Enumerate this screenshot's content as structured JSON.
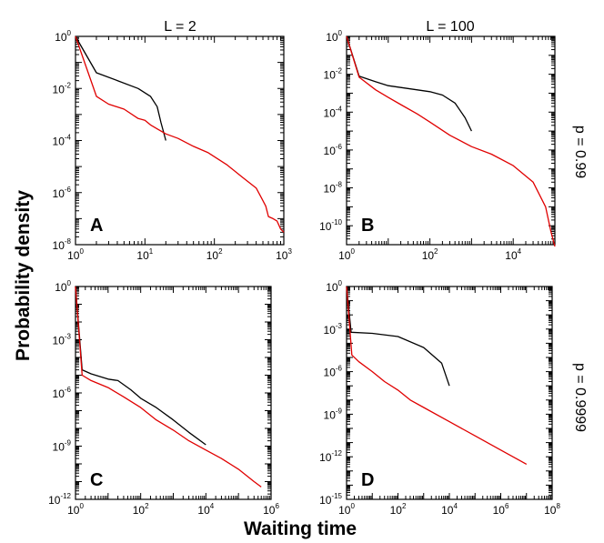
{
  "figure": {
    "xlabel": "Waiting time",
    "ylabel": "Probability density",
    "col_headers": [
      "L = 2",
      "L = 100"
    ],
    "row_headers": [
      "p = 0.99",
      "p = 0.9999"
    ],
    "colors": {
      "black_series": "#000000",
      "red_series": "#e00000"
    }
  },
  "chart_data": [
    {
      "type": "line",
      "panel": "A",
      "log_x": true,
      "log_y": true,
      "xlim": [
        1,
        1000
      ],
      "ylim": [
        1e-08,
        1
      ],
      "xticks": [
        1,
        10,
        100,
        1000
      ],
      "yticks": [
        1,
        0.01,
        0.0001,
        1e-06,
        1e-08
      ],
      "series": [
        {
          "color": "#000000",
          "points": [
            [
              1,
              1
            ],
            [
              2,
              0.04
            ],
            [
              4,
              0.02
            ],
            [
              8,
              0.01
            ],
            [
              12,
              0.005
            ],
            [
              15,
              0.002
            ],
            [
              17,
              0.0005
            ],
            [
              20,
              0.0001
            ]
          ]
        },
        {
          "color": "#e00000",
          "points": [
            [
              1,
              1
            ],
            [
              2,
              0.005
            ],
            [
              3,
              0.0025
            ],
            [
              5,
              0.0016
            ],
            [
              8,
              0.0007
            ],
            [
              10,
              0.0006
            ],
            [
              12,
              0.0004
            ],
            [
              15,
              0.00028
            ],
            [
              20,
              0.00018
            ],
            [
              30,
              0.00012
            ],
            [
              50,
              6e-05
            ],
            [
              80,
              3.5e-05
            ],
            [
              150,
              1.2e-05
            ],
            [
              250,
              4e-06
            ],
            [
              400,
              1.5e-06
            ],
            [
              480,
              6e-07
            ],
            [
              550,
              3e-07
            ],
            [
              600,
              1.2e-07
            ],
            [
              700,
              1e-07
            ],
            [
              800,
              8e-08
            ],
            [
              900,
              4e-08
            ],
            [
              1000,
              3e-08
            ]
          ]
        }
      ]
    },
    {
      "type": "line",
      "panel": "B",
      "log_x": true,
      "log_y": true,
      "xlim": [
        1,
        100000
      ],
      "ylim": [
        1e-11,
        1
      ],
      "xticks": [
        1,
        100,
        10000
      ],
      "yticks": [
        1,
        0.01,
        0.0001,
        1e-06,
        1e-08,
        1e-10
      ],
      "series": [
        {
          "color": "#000000",
          "points": [
            [
              1,
              1
            ],
            [
              2,
              0.008
            ],
            [
              5,
              0.004
            ],
            [
              10,
              0.0025
            ],
            [
              20,
              0.002
            ],
            [
              50,
              0.0015
            ],
            [
              100,
              0.0012
            ],
            [
              200,
              0.0008
            ],
            [
              400,
              0.0003
            ],
            [
              700,
              5e-05
            ],
            [
              1000,
              1e-05
            ]
          ]
        },
        {
          "color": "#e00000",
          "points": [
            [
              1,
              1
            ],
            [
              2,
              0.007
            ],
            [
              5,
              0.0015
            ],
            [
              10,
              0.0006
            ],
            [
              20,
              0.00025
            ],
            [
              50,
              8e-05
            ],
            [
              100,
              3e-05
            ],
            [
              300,
              6e-06
            ],
            [
              1000,
              1.5e-06
            ],
            [
              3000,
              6e-07
            ],
            [
              10000,
              1.5e-07
            ],
            [
              30000,
              2e-08
            ],
            [
              60000,
              1e-09
            ],
            [
              80000,
              5e-11
            ],
            [
              100000,
              8e-12
            ]
          ]
        }
      ]
    },
    {
      "type": "line",
      "panel": "C",
      "log_x": true,
      "log_y": true,
      "xlim": [
        1,
        1000000
      ],
      "ylim": [
        1e-12,
        1
      ],
      "xticks": [
        1,
        100,
        10000,
        1000000
      ],
      "yticks": [
        1,
        0.001,
        1e-06,
        1e-09,
        1e-12
      ],
      "series": [
        {
          "color": "#000000",
          "points": [
            [
              1,
              1
            ],
            [
              1.6,
              2e-05
            ],
            [
              3,
              1.2e-05
            ],
            [
              10,
              6e-06
            ],
            [
              20,
              5e-06
            ],
            [
              50,
              1.5e-06
            ],
            [
              100,
              5e-07
            ],
            [
              300,
              1.5e-07
            ],
            [
              1000,
              3e-08
            ],
            [
              3000,
              6e-09
            ],
            [
              10000,
              1.2e-09
            ]
          ]
        },
        {
          "color": "#e00000",
          "points": [
            [
              1,
              1
            ],
            [
              1.6,
              1e-05
            ],
            [
              3,
              5e-06
            ],
            [
              10,
              2e-06
            ],
            [
              30,
              6e-07
            ],
            [
              100,
              1.5e-07
            ],
            [
              300,
              3e-08
            ],
            [
              1000,
              8e-09
            ],
            [
              3000,
              2e-09
            ],
            [
              10000,
              6e-10
            ],
            [
              30000,
              2e-10
            ],
            [
              100000,
              5e-11
            ],
            [
              300000,
              1e-11
            ],
            [
              500000,
              5e-12
            ]
          ]
        }
      ]
    },
    {
      "type": "line",
      "panel": "D",
      "log_x": true,
      "log_y": true,
      "xlim": [
        1,
        100000000
      ],
      "ylim": [
        1e-15,
        1
      ],
      "xticks": [
        1,
        100,
        10000,
        1000000,
        100000000
      ],
      "yticks": [
        1,
        0.001,
        1e-06,
        1e-09,
        1e-12,
        1e-15
      ],
      "series": [
        {
          "color": "#000000",
          "points": [
            [
              1,
              1
            ],
            [
              1.5,
              0.0006
            ],
            [
              10,
              0.0005
            ],
            [
              100,
              0.0003
            ],
            [
              1000,
              5e-05
            ],
            [
              5000,
              4e-06
            ],
            [
              10000,
              1e-07
            ]
          ]
        },
        {
          "color": "#e00000",
          "points": [
            [
              1,
              1
            ],
            [
              1.6,
              1.5e-05
            ],
            [
              3,
              5e-06
            ],
            [
              10,
              1e-06
            ],
            [
              30,
              2e-07
            ],
            [
              100,
              5e-08
            ],
            [
              300,
              1e-08
            ],
            [
              1000,
              3e-09
            ],
            [
              10000,
              3e-10
            ],
            [
              100000,
              3e-11
            ],
            [
              1000000,
              3e-12
            ],
            [
              10000000,
              3e-13
            ]
          ]
        }
      ]
    }
  ]
}
